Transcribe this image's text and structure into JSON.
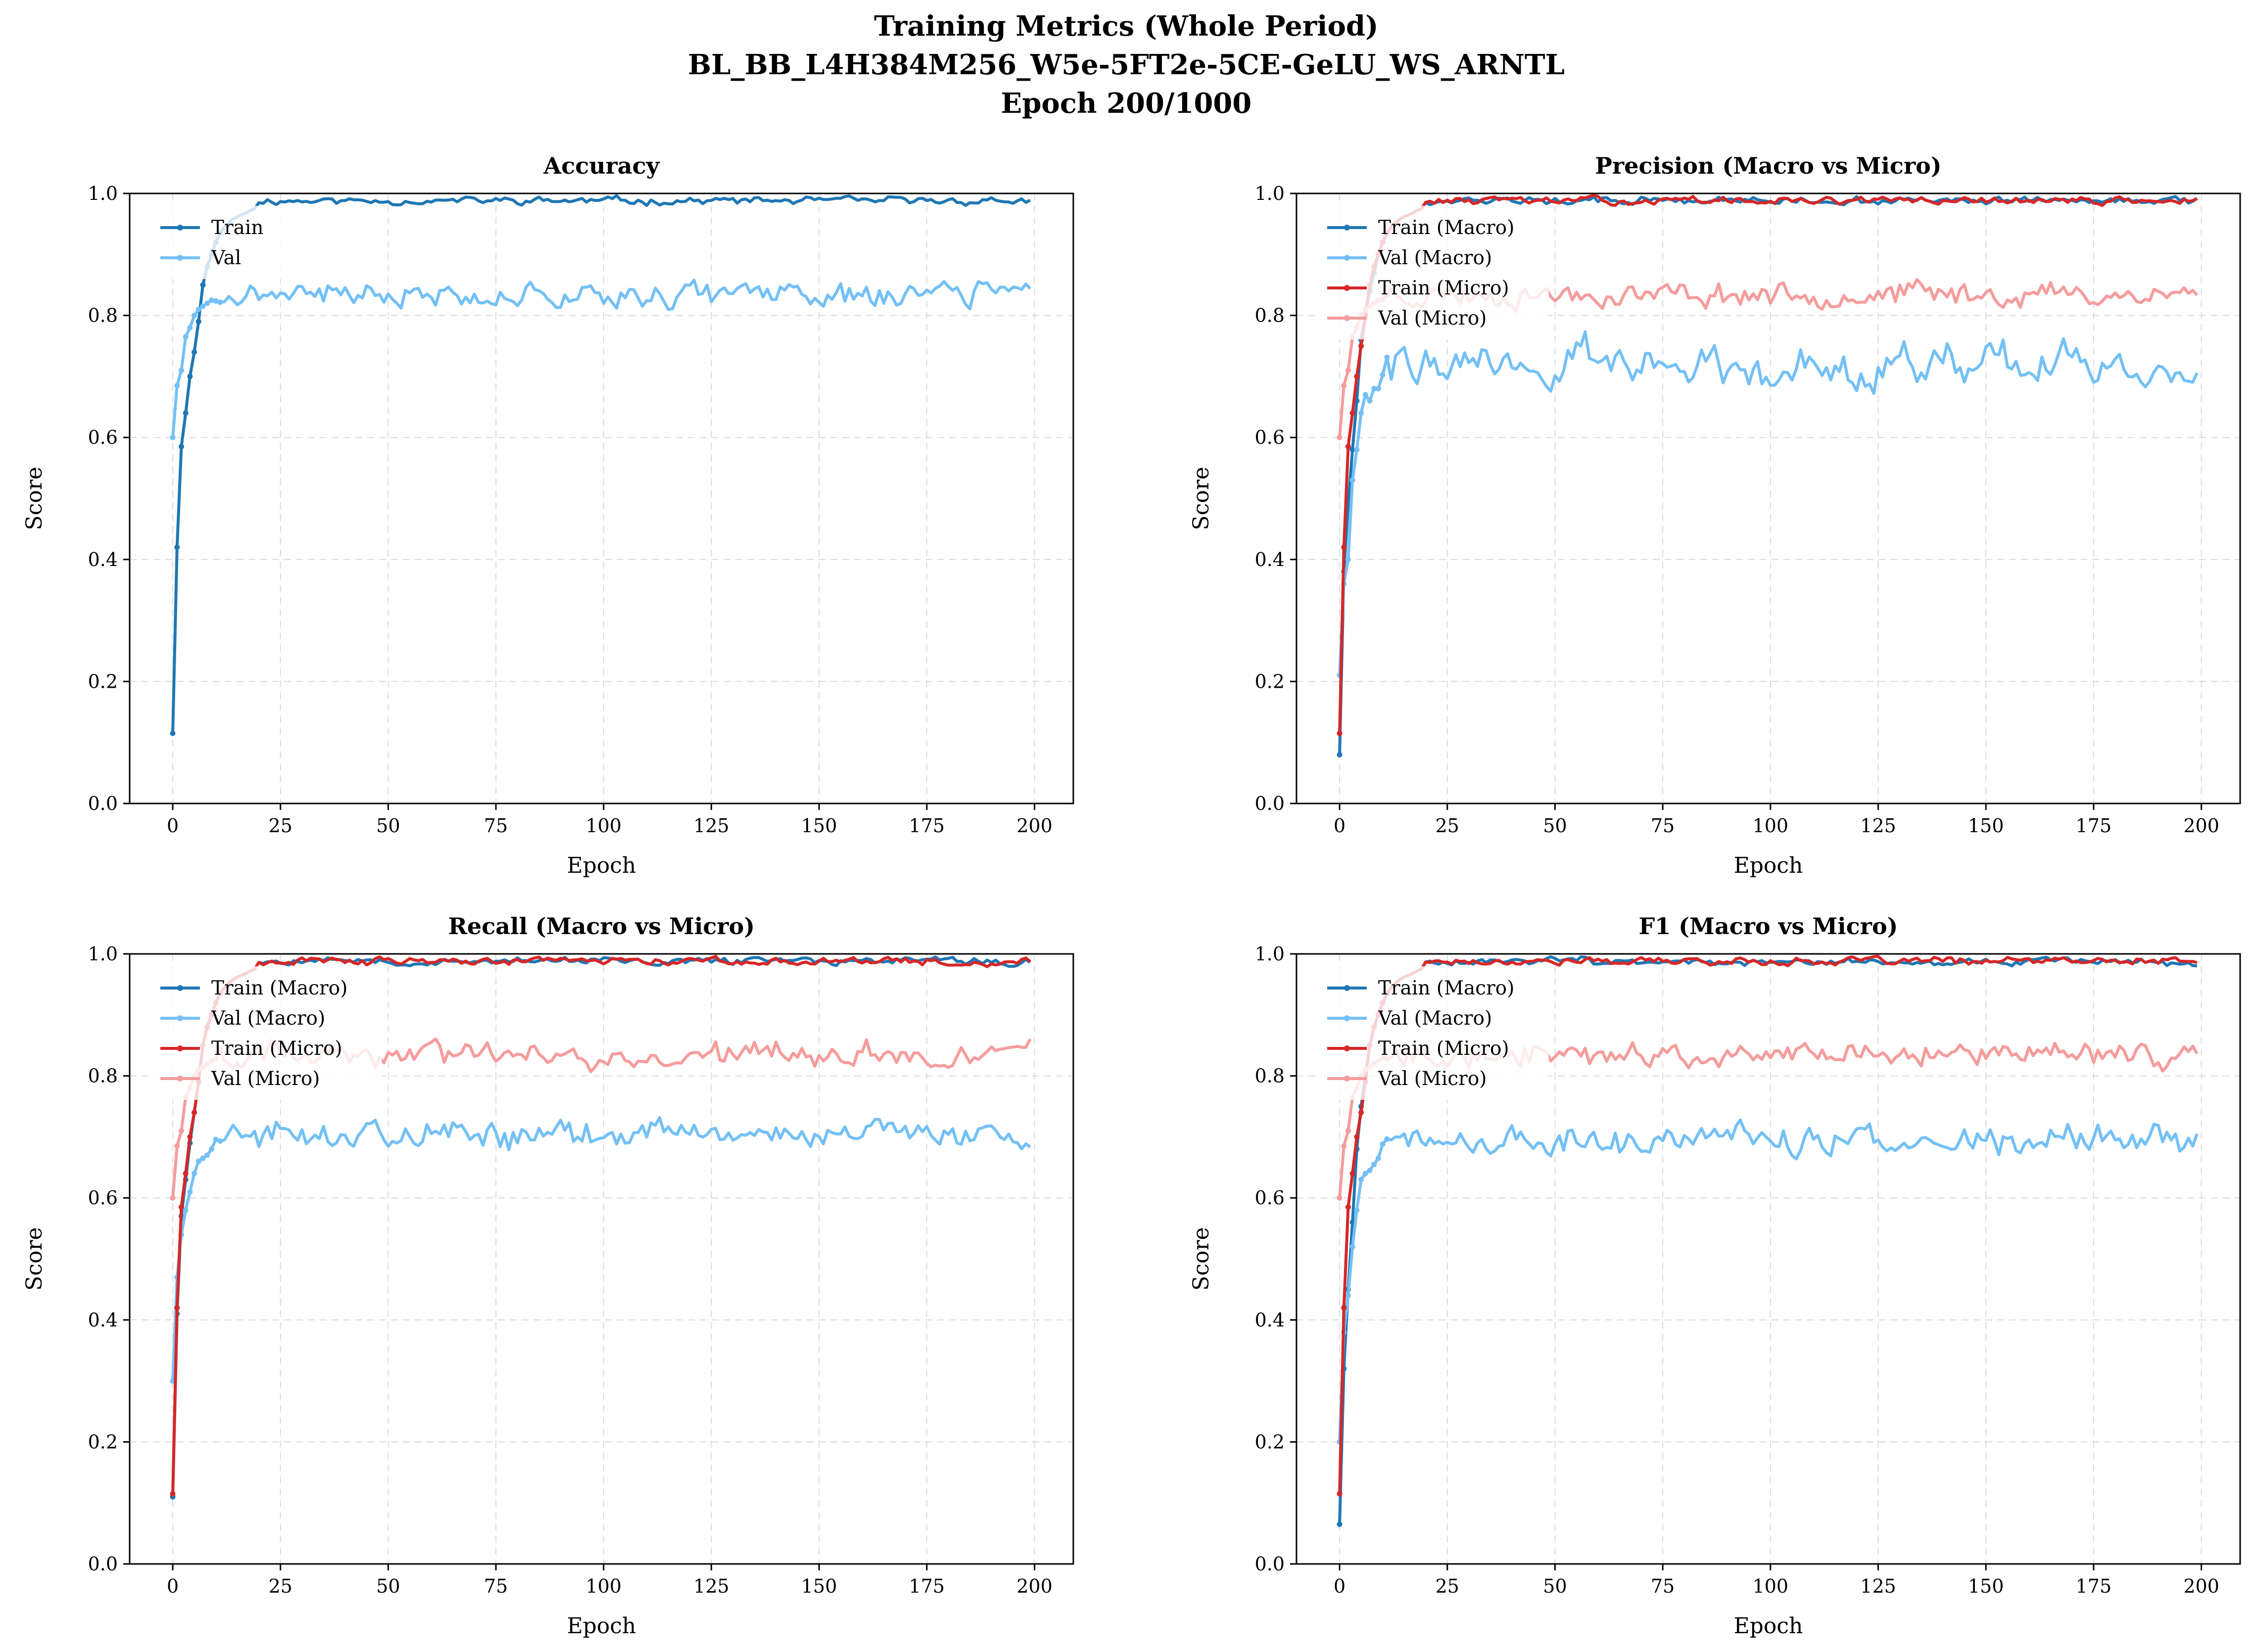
{
  "suptitle": [
    "Training Metrics (Whole Period)",
    "BL_BB_L4H384M256_W5e-5FT2e-5CE-GeLU_WS_ARNTL",
    "Epoch 200/1000"
  ],
  "colors": {
    "train_macro": "#1f77b4",
    "val_macro": "#74c0f5",
    "train_micro": "#d62728",
    "val_micro": "#f59c9c"
  },
  "chart_data": [
    {
      "type": "line",
      "title": "Accuracy",
      "xlabel": "Epoch",
      "ylabel": "Score",
      "xlim": [
        -10,
        209
      ],
      "ylim": [
        0,
        1
      ],
      "grid": true,
      "legend_position": "upper-left",
      "xticks": [
        "0",
        "25",
        "50",
        "75",
        "100",
        "125",
        "150",
        "175",
        "200"
      ],
      "yticks": [
        "0.0",
        "0.2",
        "0.4",
        "0.6",
        "0.8",
        "1.0"
      ],
      "series": [
        {
          "name": "Train",
          "color": "#1f77b4",
          "marker": true,
          "gen": {
            "plateau": 0.988,
            "noise": 0.004,
            "seed": 11
          },
          "early": [
            0.115,
            0.42,
            0.585,
            0.64,
            0.7,
            0.74,
            0.79,
            0.85,
            0.88,
            0.9,
            0.92,
            0.935,
            0.945,
            0.952,
            0.958,
            0.962,
            0.965,
            0.968,
            0.972,
            0.975
          ]
        },
        {
          "name": "Val",
          "color": "#74c0f5",
          "marker": true,
          "gen": {
            "plateau": 0.835,
            "noise": 0.013,
            "seed": 21
          },
          "early": [
            0.6,
            0.685,
            0.71,
            0.765,
            0.78,
            0.8,
            0.81,
            0.815,
            0.82,
            0.825
          ]
        }
      ]
    },
    {
      "type": "line",
      "title": "Precision (Macro vs Micro)",
      "xlabel": "Epoch",
      "ylabel": "Score",
      "xlim": [
        -10,
        209
      ],
      "ylim": [
        0,
        1
      ],
      "grid": true,
      "legend_position": "upper-left",
      "xticks": [
        "0",
        "25",
        "50",
        "75",
        "100",
        "125",
        "150",
        "175",
        "200"
      ],
      "yticks": [
        "0.0",
        "0.2",
        "0.4",
        "0.6",
        "0.8",
        "1.0"
      ],
      "series": [
        {
          "name": "Train (Macro)",
          "color": "#1f77b4",
          "marker": true,
          "gen": {
            "plateau": 0.988,
            "noise": 0.004,
            "seed": 12
          },
          "early": [
            0.08,
            0.38,
            0.49,
            0.58,
            0.66,
            0.76,
            0.8,
            0.84,
            0.87,
            0.9,
            0.92,
            0.935,
            0.945,
            0.952,
            0.958,
            0.962,
            0.965,
            0.968,
            0.972,
            0.975
          ]
        },
        {
          "name": "Val (Macro)",
          "color": "#74c0f5",
          "marker": true,
          "gen": {
            "plateau": 0.72,
            "noise": 0.022,
            "seed": 22
          },
          "early": [
            0.21,
            0.36,
            0.4,
            0.53,
            0.58,
            0.64,
            0.67,
            0.66,
            0.68,
            0.68
          ]
        },
        {
          "name": "Train (Micro)",
          "color": "#d62728",
          "marker": true,
          "gen": {
            "plateau": 0.988,
            "noise": 0.004,
            "seed": 13
          },
          "early": [
            0.115,
            0.42,
            0.585,
            0.64,
            0.7,
            0.75,
            0.8,
            0.85,
            0.88,
            0.9,
            0.92,
            0.935,
            0.945,
            0.952,
            0.958,
            0.962,
            0.965,
            0.968,
            0.972,
            0.975
          ]
        },
        {
          "name": "Val (Micro)",
          "color": "#f59c9c",
          "marker": true,
          "gen": {
            "plateau": 0.835,
            "noise": 0.013,
            "seed": 23
          },
          "early": [
            0.6,
            0.685,
            0.71,
            0.765,
            0.78,
            0.8,
            0.81,
            0.815,
            0.82,
            0.825
          ]
        }
      ]
    },
    {
      "type": "line",
      "title": "Recall (Macro vs Micro)",
      "xlabel": "Epoch",
      "ylabel": "Score",
      "xlim": [
        -10,
        209
      ],
      "ylim": [
        0,
        1
      ],
      "grid": true,
      "legend_position": "upper-left",
      "xticks": [
        "0",
        "25",
        "50",
        "75",
        "100",
        "125",
        "150",
        "175",
        "200"
      ],
      "yticks": [
        "0.0",
        "0.2",
        "0.4",
        "0.6",
        "0.8",
        "1.0"
      ],
      "series": [
        {
          "name": "Train (Macro)",
          "color": "#1f77b4",
          "marker": true,
          "gen": {
            "plateau": 0.988,
            "noise": 0.004,
            "seed": 14
          },
          "early": [
            0.11,
            0.41,
            0.57,
            0.63,
            0.69,
            0.74,
            0.79,
            0.85,
            0.88,
            0.9,
            0.92,
            0.935,
            0.945,
            0.952,
            0.958,
            0.962,
            0.965,
            0.968,
            0.972,
            0.975
          ]
        },
        {
          "name": "Val (Macro)",
          "color": "#74c0f5",
          "marker": true,
          "gen": {
            "plateau": 0.705,
            "noise": 0.015,
            "seed": 24
          },
          "early": [
            0.3,
            0.47,
            0.54,
            0.58,
            0.61,
            0.64,
            0.66,
            0.665,
            0.67,
            0.68
          ]
        },
        {
          "name": "Train (Micro)",
          "color": "#d62728",
          "marker": true,
          "gen": {
            "plateau": 0.988,
            "noise": 0.004,
            "seed": 15
          },
          "early": [
            0.115,
            0.42,
            0.585,
            0.64,
            0.7,
            0.74,
            0.79,
            0.85,
            0.88,
            0.9,
            0.92,
            0.935,
            0.945,
            0.952,
            0.958,
            0.962,
            0.965,
            0.968,
            0.972,
            0.975
          ]
        },
        {
          "name": "Val (Micro)",
          "color": "#f59c9c",
          "marker": true,
          "gen": {
            "plateau": 0.835,
            "noise": 0.013,
            "seed": 25
          },
          "early": [
            0.6,
            0.685,
            0.71,
            0.765,
            0.78,
            0.8,
            0.81,
            0.815,
            0.82,
            0.825
          ]
        }
      ]
    },
    {
      "type": "line",
      "title": "F1 (Macro vs Micro)",
      "xlabel": "Epoch",
      "ylabel": "Score",
      "xlim": [
        -10,
        209
      ],
      "ylim": [
        0,
        1
      ],
      "grid": true,
      "legend_position": "upper-left",
      "xticks": [
        "0",
        "25",
        "50",
        "75",
        "100",
        "125",
        "150",
        "175",
        "200"
      ],
      "yticks": [
        "0.0",
        "0.2",
        "0.4",
        "0.6",
        "0.8",
        "1.0"
      ],
      "series": [
        {
          "name": "Train (Macro)",
          "color": "#1f77b4",
          "marker": true,
          "gen": {
            "plateau": 0.988,
            "noise": 0.004,
            "seed": 16
          },
          "early": [
            0.065,
            0.32,
            0.45,
            0.56,
            0.68,
            0.75,
            0.8,
            0.85,
            0.88,
            0.9,
            0.92,
            0.935,
            0.945,
            0.952,
            0.958,
            0.962,
            0.965,
            0.968,
            0.972,
            0.975
          ]
        },
        {
          "name": "Val (Macro)",
          "color": "#74c0f5",
          "marker": true,
          "gen": {
            "plateau": 0.695,
            "noise": 0.016,
            "seed": 26
          },
          "early": [
            0.2,
            0.38,
            0.44,
            0.52,
            0.58,
            0.63,
            0.64,
            0.645,
            0.655,
            0.665
          ]
        },
        {
          "name": "Train (Micro)",
          "color": "#d62728",
          "marker": true,
          "gen": {
            "plateau": 0.988,
            "noise": 0.004,
            "seed": 17
          },
          "early": [
            0.115,
            0.42,
            0.585,
            0.64,
            0.7,
            0.74,
            0.79,
            0.85,
            0.88,
            0.9,
            0.92,
            0.935,
            0.945,
            0.952,
            0.958,
            0.962,
            0.965,
            0.968,
            0.972,
            0.975
          ]
        },
        {
          "name": "Val (Micro)",
          "color": "#f59c9c",
          "marker": true,
          "gen": {
            "plateau": 0.835,
            "noise": 0.013,
            "seed": 27
          },
          "early": [
            0.6,
            0.685,
            0.71,
            0.765,
            0.78,
            0.8,
            0.81,
            0.815,
            0.82,
            0.825
          ]
        }
      ]
    }
  ]
}
